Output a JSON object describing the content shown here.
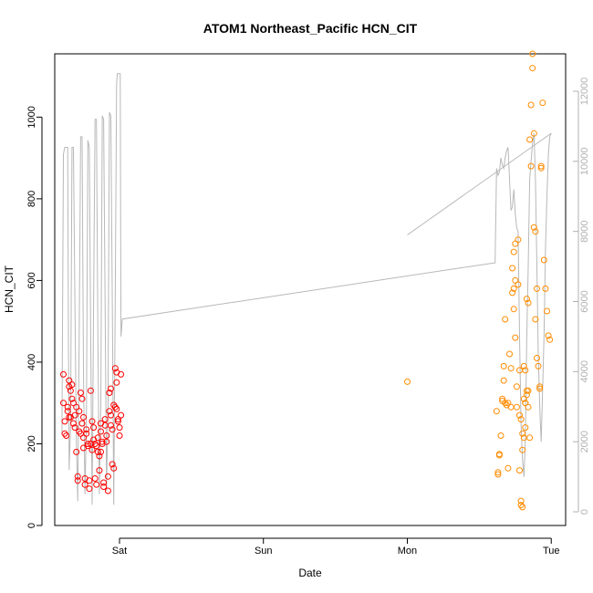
{
  "chart_data": {
    "type": "scatter",
    "title": "ATOM1 Northeast_Pacific HCN_CIT",
    "xlabel": "Date",
    "ylabel": "HCN_CIT",
    "x_unit": "days",
    "xlim": [
      -0.45,
      3.1
    ],
    "ylim": [
      0,
      1155
    ],
    "y2lim": [
      -100,
      12500
    ],
    "x_ticks": [
      {
        "value": 0,
        "label": "Sat"
      },
      {
        "value": 1,
        "label": "Sun"
      },
      {
        "value": 2,
        "label": "Mon"
      },
      {
        "value": 3,
        "label": "Tue"
      }
    ],
    "y_ticks": [
      {
        "value": 0,
        "label": "0"
      },
      {
        "value": 200,
        "label": "200"
      },
      {
        "value": 400,
        "label": "400"
      },
      {
        "value": 600,
        "label": "600"
      },
      {
        "value": 800,
        "label": "800"
      },
      {
        "value": 1000,
        "label": "1000"
      }
    ],
    "y2_ticks": [
      {
        "value": 0,
        "label": "0"
      },
      {
        "value": 2000,
        "label": "2000"
      },
      {
        "value": 4000,
        "label": "4000"
      },
      {
        "value": 6000,
        "label": "6000"
      },
      {
        "value": 8000,
        "label": "8000"
      },
      {
        "value": 10000,
        "label": "10000"
      },
      {
        "value": 12000,
        "label": "12000"
      }
    ],
    "colors": {
      "series_early": "#ff0000",
      "series_late": "#ff8c00",
      "altitude_line": "#b8b8b8"
    },
    "series": [
      {
        "color": "#ff0000",
        "points": [
          [
            -0.39,
            370
          ],
          [
            -0.39,
            300
          ],
          [
            -0.38,
            255
          ],
          [
            -0.38,
            225
          ],
          [
            -0.37,
            220
          ],
          [
            -0.36,
            290
          ],
          [
            -0.36,
            280
          ],
          [
            -0.35,
            355
          ],
          [
            -0.35,
            340
          ],
          [
            -0.34,
            330
          ],
          [
            -0.34,
            265
          ],
          [
            -0.33,
            310
          ],
          [
            -0.33,
            345
          ],
          [
            -0.32,
            300
          ],
          [
            -0.32,
            250
          ],
          [
            -0.31,
            240
          ],
          [
            -0.31,
            270
          ],
          [
            -0.3,
            290
          ],
          [
            -0.3,
            180
          ],
          [
            -0.29,
            110
          ],
          [
            -0.29,
            120
          ],
          [
            -0.28,
            280
          ],
          [
            -0.28,
            230
          ],
          [
            -0.27,
            225
          ],
          [
            -0.27,
            325
          ],
          [
            -0.26,
            310
          ],
          [
            -0.26,
            250
          ],
          [
            -0.25,
            215
          ],
          [
            -0.25,
            190
          ],
          [
            -0.24,
            115
          ],
          [
            -0.24,
            100
          ],
          [
            -0.23,
            235
          ],
          [
            -0.23,
            225
          ],
          [
            -0.22,
            200
          ],
          [
            -0.22,
            195
          ],
          [
            -0.21,
            110
          ],
          [
            -0.21,
            90
          ],
          [
            -0.2,
            330
          ],
          [
            -0.2,
            200
          ],
          [
            -0.19,
            185
          ],
          [
            -0.19,
            255
          ],
          [
            -0.18,
            240
          ],
          [
            -0.18,
            210
          ],
          [
            -0.17,
            200
          ],
          [
            -0.17,
            115
          ],
          [
            -0.16,
            100
          ],
          [
            -0.16,
            195
          ],
          [
            -0.15,
            215
          ],
          [
            -0.15,
            180
          ],
          [
            -0.14,
            170
          ],
          [
            -0.14,
            135
          ],
          [
            -0.13,
            250
          ],
          [
            -0.13,
            230
          ],
          [
            -0.12,
            205
          ],
          [
            -0.12,
            200
          ],
          [
            -0.11,
            105
          ],
          [
            -0.11,
            95
          ],
          [
            -0.1,
            260
          ],
          [
            -0.1,
            245
          ],
          [
            -0.09,
            220
          ],
          [
            -0.09,
            205
          ],
          [
            -0.08,
            120
          ],
          [
            -0.08,
            85
          ],
          [
            -0.07,
            325
          ],
          [
            -0.07,
            280
          ],
          [
            -0.06,
            270
          ],
          [
            -0.06,
            245
          ],
          [
            -0.05,
            235
          ],
          [
            -0.05,
            150
          ],
          [
            -0.04,
            140
          ],
          [
            -0.04,
            295
          ],
          [
            -0.03,
            290
          ],
          [
            -0.03,
            385
          ],
          [
            -0.02,
            375
          ],
          [
            -0.02,
            350
          ],
          [
            -0.01,
            260
          ],
          [
            -0.01,
            255
          ],
          [
            0.0,
            240
          ],
          [
            0.0,
            220
          ],
          [
            0.01,
            370
          ],
          [
            0.01,
            270
          ],
          [
            -0.06,
            335
          ],
          [
            -0.02,
            285
          ],
          [
            -0.13,
            180
          ],
          [
            -0.25,
            265
          ],
          [
            -0.35,
            265
          ]
        ]
      },
      {
        "color": "#ff8c00",
        "points": [
          [
            2.0,
            352
          ],
          [
            2.62,
            280
          ],
          [
            2.63,
            130
          ],
          [
            2.63,
            125
          ],
          [
            2.64,
            175
          ],
          [
            2.64,
            172
          ],
          [
            2.65,
            220
          ],
          [
            2.66,
            305
          ],
          [
            2.66,
            310
          ],
          [
            2.67,
            390
          ],
          [
            2.67,
            355
          ],
          [
            2.68,
            505
          ],
          [
            2.68,
            300
          ],
          [
            2.69,
            295
          ],
          [
            2.7,
            300
          ],
          [
            2.7,
            140
          ],
          [
            2.71,
            420
          ],
          [
            2.72,
            385
          ],
          [
            2.72,
            290
          ],
          [
            2.73,
            630
          ],
          [
            2.73,
            570
          ],
          [
            2.74,
            670
          ],
          [
            2.74,
            580
          ],
          [
            2.74,
            530
          ],
          [
            2.75,
            690
          ],
          [
            2.75,
            600
          ],
          [
            2.75,
            460
          ],
          [
            2.76,
            340
          ],
          [
            2.76,
            290
          ],
          [
            2.77,
            700
          ],
          [
            2.77,
            590
          ],
          [
            2.78,
            270
          ],
          [
            2.78,
            135
          ],
          [
            2.79,
            60
          ],
          [
            2.79,
            50
          ],
          [
            2.8,
            45
          ],
          [
            2.81,
            310
          ],
          [
            2.81,
            390
          ],
          [
            2.82,
            380
          ],
          [
            2.82,
            300
          ],
          [
            2.82,
            240
          ],
          [
            2.83,
            330
          ],
          [
            2.83,
            320
          ],
          [
            2.84,
            330
          ],
          [
            2.84,
            290
          ],
          [
            2.85,
            215
          ],
          [
            2.85,
            945
          ],
          [
            2.86,
            880
          ],
          [
            2.86,
            1030
          ],
          [
            2.87,
            1155
          ],
          [
            2.87,
            1120
          ],
          [
            2.88,
            960
          ],
          [
            2.88,
            730
          ],
          [
            2.89,
            720
          ],
          [
            2.89,
            505
          ],
          [
            2.9,
            580
          ],
          [
            2.9,
            410
          ],
          [
            2.91,
            390
          ],
          [
            2.92,
            335
          ],
          [
            2.92,
            340
          ],
          [
            2.93,
            875
          ],
          [
            2.93,
            880
          ],
          [
            2.94,
            1035
          ],
          [
            2.95,
            650
          ],
          [
            2.96,
            580
          ],
          [
            2.97,
            525
          ],
          [
            2.98,
            465
          ],
          [
            2.99,
            455
          ],
          [
            2.8,
            185
          ],
          [
            2.81,
            215
          ],
          [
            2.79,
            260
          ],
          [
            2.8,
            225
          ],
          [
            2.83,
            555
          ],
          [
            2.84,
            545
          ],
          [
            2.78,
            380
          ],
          [
            2.82,
            300
          ]
        ]
      }
    ],
    "altitude_line": [
      [
        -0.4,
        2200
      ],
      [
        -0.39,
        10200
      ],
      [
        -0.38,
        10400
      ],
      [
        -0.37,
        10400
      ],
      [
        -0.36,
        10400
      ],
      [
        -0.355,
        5000
      ],
      [
        -0.35,
        1200
      ],
      [
        -0.34,
        2500
      ],
      [
        -0.33,
        10400
      ],
      [
        -0.32,
        10400
      ],
      [
        -0.31,
        6000
      ],
      [
        -0.3,
        2000
      ],
      [
        -0.29,
        300
      ],
      [
        -0.28,
        5000
      ],
      [
        -0.27,
        10700
      ],
      [
        -0.26,
        10700
      ],
      [
        -0.25,
        4000
      ],
      [
        -0.24,
        500
      ],
      [
        -0.23,
        2500
      ],
      [
        -0.22,
        10600
      ],
      [
        -0.21,
        10400
      ],
      [
        -0.2,
        5000
      ],
      [
        -0.19,
        200
      ],
      [
        -0.18,
        6000
      ],
      [
        -0.17,
        11200
      ],
      [
        -0.16,
        11200
      ],
      [
        -0.15,
        5000
      ],
      [
        -0.14,
        500
      ],
      [
        -0.13,
        3000
      ],
      [
        -0.12,
        11300
      ],
      [
        -0.11,
        11200
      ],
      [
        -0.1,
        6000
      ],
      [
        -0.09,
        600
      ],
      [
        -0.08,
        3000
      ],
      [
        -0.07,
        11400
      ],
      [
        -0.06,
        11300
      ],
      [
        -0.05,
        6000
      ],
      [
        -0.04,
        200
      ],
      [
        -0.03,
        6000
      ],
      [
        -0.02,
        12200
      ],
      [
        -0.015,
        12500
      ],
      [
        -0.01,
        12500
      ],
      [
        0.0,
        12500
      ],
      [
        0.005,
        12500
      ],
      [
        0.01,
        5000
      ],
      [
        0.02,
        5500
      ],
      [
        2.6,
        7100
      ],
      [
        2.61,
        7100
      ],
      [
        2.62,
        9800
      ],
      [
        2.63,
        9600
      ],
      [
        2.64,
        9700
      ],
      [
        2.65,
        10100
      ],
      [
        2.66,
        9900
      ],
      [
        2.67,
        9800
      ],
      [
        2.68,
        10100
      ],
      [
        2.69,
        10300
      ],
      [
        2.7,
        10400
      ],
      [
        2.71,
        9500
      ],
      [
        2.72,
        8600
      ],
      [
        2.73,
        8700
      ],
      [
        2.74,
        9200
      ],
      [
        2.75,
        8500
      ],
      [
        2.76,
        8100
      ],
      [
        2.77,
        8000
      ],
      [
        2.78,
        5000
      ],
      [
        2.79,
        2500
      ],
      [
        2.8,
        1500
      ],
      [
        2.81,
        1000
      ],
      [
        2.82,
        2000
      ],
      [
        2.83,
        5000
      ],
      [
        2.84,
        7000
      ],
      [
        2.85,
        9500
      ],
      [
        2.86,
        10000
      ],
      [
        2.87,
        10500
      ],
      [
        2.88,
        10800
      ],
      [
        2.89,
        9500
      ],
      [
        2.9,
        7000
      ],
      [
        2.91,
        4500
      ],
      [
        2.92,
        3000
      ],
      [
        2.93,
        2000
      ],
      [
        2.94,
        3500
      ],
      [
        2.95,
        5000
      ],
      [
        2.96,
        7500
      ],
      [
        2.97,
        9000
      ],
      [
        2.98,
        10200
      ],
      [
        2.99,
        10700
      ],
      [
        3.0,
        10800
      ]
    ],
    "altitude_line_2": [
      [
        2.0,
        7900
      ],
      [
        3.0,
        10800
      ]
    ]
  }
}
